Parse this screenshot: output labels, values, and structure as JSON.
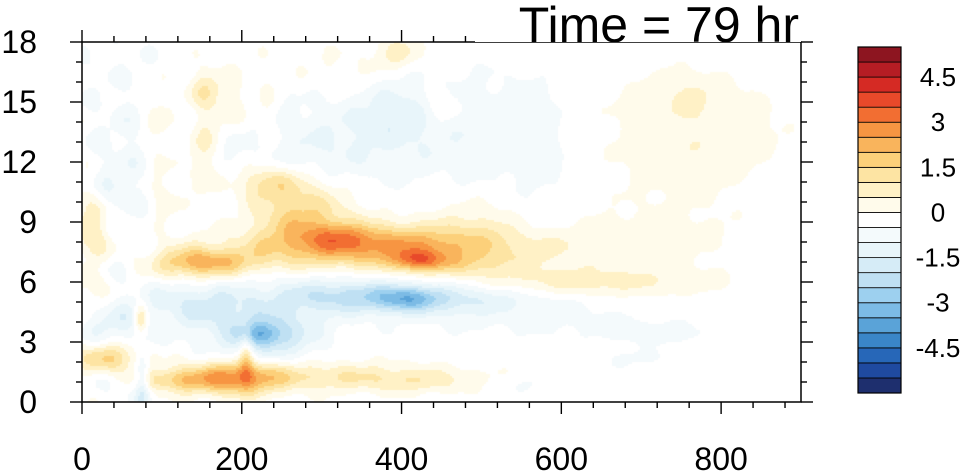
{
  "chart_data": {
    "type": "heatmap",
    "title": "Time = 79 hr",
    "xlabel": "",
    "ylabel": "",
    "xlim": [
      0,
      900
    ],
    "ylim": [
      0,
      18
    ],
    "x_ticks": [
      0,
      200,
      400,
      600,
      800
    ],
    "y_ticks": [
      0,
      3,
      6,
      9,
      12,
      15,
      18
    ],
    "x_tick_labels": [
      "0",
      "200",
      "400",
      "600",
      "800"
    ],
    "y_tick_labels": [
      "0",
      "3",
      "6",
      "9",
      "12",
      "15",
      "18"
    ],
    "grid": false,
    "colorbar": {
      "placement": "right",
      "levels": [
        -5.5,
        -5,
        -4.5,
        -4,
        -3.5,
        -3,
        -2.5,
        -2,
        -1.5,
        -1,
        -0.5,
        0,
        0.5,
        1,
        1.5,
        2,
        2.5,
        3,
        3.5,
        4,
        4.5,
        5,
        5.5
      ],
      "colors": [
        "#1e2f6e",
        "#1f4aa0",
        "#2767b8",
        "#3a86c8",
        "#5aa3d8",
        "#7cbbe5",
        "#9dd0ef",
        "#bfe0f3",
        "#d6ecf7",
        "#e8f5fa",
        "#f4fafc",
        "#ffffff",
        "#fffbeb",
        "#fff1c6",
        "#fde4a3",
        "#fcd07a",
        "#f9b45c",
        "#f79542",
        "#f26e32",
        "#e8492a",
        "#d52a24",
        "#b51d24",
        "#8d1520"
      ],
      "labels": [
        "4.5",
        "3",
        "1.5",
        "0",
        "-1.5",
        "-3",
        "-4.5"
      ],
      "label_values": [
        4.5,
        3,
        1.5,
        0,
        -1.5,
        -3,
        -4.5
      ]
    },
    "features": [
      {
        "x": 385,
        "y": 7.8,
        "sx": 120,
        "sy": 0.75,
        "v": 2.8
      },
      {
        "x": 420,
        "y": 7.1,
        "sx": 20,
        "sy": 0.35,
        "v": 1.8
      },
      {
        "x": 320,
        "y": 8.3,
        "sx": 30,
        "sy": 0.5,
        "v": 1.0
      },
      {
        "x": 470,
        "y": 6.9,
        "sx": 50,
        "sy": 0.4,
        "v": 0.8
      },
      {
        "x": 620,
        "y": 6.0,
        "sx": 110,
        "sy": 0.5,
        "v": 1.0
      },
      {
        "x": 650,
        "y": 8.0,
        "sx": 120,
        "sy": 1.1,
        "v": 0.5
      },
      {
        "x": 270,
        "y": 9.5,
        "sx": 45,
        "sy": 1.2,
        "v": 1.9
      },
      {
        "x": 230,
        "y": 11.0,
        "sx": 35,
        "sy": 0.6,
        "v": 1.3
      },
      {
        "x": 160,
        "y": 7.0,
        "sx": 45,
        "sy": 0.5,
        "v": 1.9
      },
      {
        "x": 130,
        "y": 6.8,
        "sx": 30,
        "sy": 0.7,
        "v": 0.9
      },
      {
        "x": 12,
        "y": 8.7,
        "sx": 18,
        "sy": 1.6,
        "v": 1.3
      },
      {
        "x": 12,
        "y": 5.5,
        "sx": 15,
        "sy": 0.8,
        "v": 0.6
      },
      {
        "x": 35,
        "y": 2.2,
        "sx": 28,
        "sy": 0.55,
        "v": 2.0
      },
      {
        "x": 110,
        "y": 1.1,
        "sx": 30,
        "sy": 0.4,
        "v": 1.6
      },
      {
        "x": 190,
        "y": 1.2,
        "sx": 40,
        "sy": 0.6,
        "v": 2.5
      },
      {
        "x": 300,
        "y": 1.3,
        "sx": 110,
        "sy": 0.5,
        "v": 1.2
      },
      {
        "x": 440,
        "y": 1.0,
        "sx": 60,
        "sy": 0.4,
        "v": 0.7
      },
      {
        "x": 150,
        "y": 12.5,
        "sx": 12,
        "sy": 1.6,
        "v": 1.1
      },
      {
        "x": 95,
        "y": 14.0,
        "sx": 12,
        "sy": 1.4,
        "v": 0.8
      },
      {
        "x": 105,
        "y": 10.5,
        "sx": 15,
        "sy": 1.2,
        "v": 0.7
      },
      {
        "x": 180,
        "y": 15.0,
        "sx": 20,
        "sy": 1.2,
        "v": 0.7
      },
      {
        "x": 150,
        "y": 15.7,
        "sx": 15,
        "sy": 0.6,
        "v": 0.9
      },
      {
        "x": 230,
        "y": 14.0,
        "sx": 10,
        "sy": 1.6,
        "v": 0.5
      },
      {
        "x": 395,
        "y": 17.5,
        "sx": 20,
        "sy": 0.6,
        "v": 1.0
      },
      {
        "x": 450,
        "y": 14.8,
        "sx": 15,
        "sy": 0.7,
        "v": 0.8
      },
      {
        "x": 330,
        "y": 16.5,
        "sx": 40,
        "sy": 0.9,
        "v": 0.4
      },
      {
        "x": 770,
        "y": 14.0,
        "sx": 80,
        "sy": 2.0,
        "v": 0.5
      },
      {
        "x": 750,
        "y": 12.0,
        "sx": 60,
        "sy": 2.0,
        "v": 0.3
      },
      {
        "x": 760,
        "y": 15.3,
        "sx": 20,
        "sy": 0.6,
        "v": 0.5
      },
      {
        "x": 73,
        "y": 4.2,
        "sx": 6,
        "sy": 0.5,
        "v": 1.8
      },
      {
        "x": 205,
        "y": 2.4,
        "sx": 6,
        "sy": 0.9,
        "v": 1.5
      },
      {
        "x": 500,
        "y": 9.2,
        "sx": 40,
        "sy": 0.8,
        "v": 0.5
      },
      {
        "x": 400,
        "y": 5.2,
        "sx": 110,
        "sy": 0.6,
        "v": -1.9
      },
      {
        "x": 405,
        "y": 5.2,
        "sx": 25,
        "sy": 0.4,
        "v": -1.3
      },
      {
        "x": 310,
        "y": 5.6,
        "sx": 70,
        "sy": 0.6,
        "v": -0.6
      },
      {
        "x": 230,
        "y": 3.5,
        "sx": 45,
        "sy": 0.9,
        "v": -2.0
      },
      {
        "x": 225,
        "y": 3.4,
        "sx": 18,
        "sy": 0.4,
        "v": -1.3
      },
      {
        "x": 120,
        "y": 5.0,
        "sx": 30,
        "sy": 1.0,
        "v": -0.9
      },
      {
        "x": 170,
        "y": 4.8,
        "sx": 30,
        "sy": 0.8,
        "v": -0.8
      },
      {
        "x": 40,
        "y": 4.0,
        "sx": 30,
        "sy": 0.9,
        "v": -1.0
      },
      {
        "x": 20,
        "y": 6.8,
        "sx": 25,
        "sy": 0.6,
        "v": -0.5
      },
      {
        "x": 60,
        "y": 1.2,
        "sx": 30,
        "sy": 0.7,
        "v": -0.5
      },
      {
        "x": 75,
        "y": 0.8,
        "sx": 6,
        "sy": 1.4,
        "v": -1.2
      },
      {
        "x": 420,
        "y": 13.8,
        "sx": 80,
        "sy": 1.8,
        "v": -0.8
      },
      {
        "x": 385,
        "y": 14.6,
        "sx": 25,
        "sy": 0.9,
        "v": -0.5
      },
      {
        "x": 560,
        "y": 13.0,
        "sx": 40,
        "sy": 2.5,
        "v": -0.4
      },
      {
        "x": 300,
        "y": 12.5,
        "sx": 50,
        "sy": 1.5,
        "v": -0.5
      },
      {
        "x": 200,
        "y": 11.5,
        "sx": 60,
        "sy": 2.5,
        "v": -0.4
      },
      {
        "x": 60,
        "y": 13.0,
        "sx": 40,
        "sy": 3.0,
        "v": -0.4
      },
      {
        "x": 30,
        "y": 10.5,
        "sx": 20,
        "sy": 1.0,
        "v": -0.6
      },
      {
        "x": 600,
        "y": 4.0,
        "sx": 120,
        "sy": 0.6,
        "v": -0.35
      },
      {
        "x": 720,
        "y": 3.4,
        "sx": 40,
        "sy": 0.3,
        "v": -0.5
      },
      {
        "x": 540,
        "y": 0.9,
        "sx": 60,
        "sy": 0.4,
        "v": -0.4
      },
      {
        "x": 700,
        "y": 2.2,
        "sx": 50,
        "sy": 0.4,
        "v": -0.3
      },
      {
        "x": 520,
        "y": 7.8,
        "sx": 60,
        "sy": 0.7,
        "v": -0.3
      },
      {
        "x": 580,
        "y": 9.0,
        "sx": 35,
        "sy": 0.7,
        "v": -0.4
      }
    ]
  }
}
